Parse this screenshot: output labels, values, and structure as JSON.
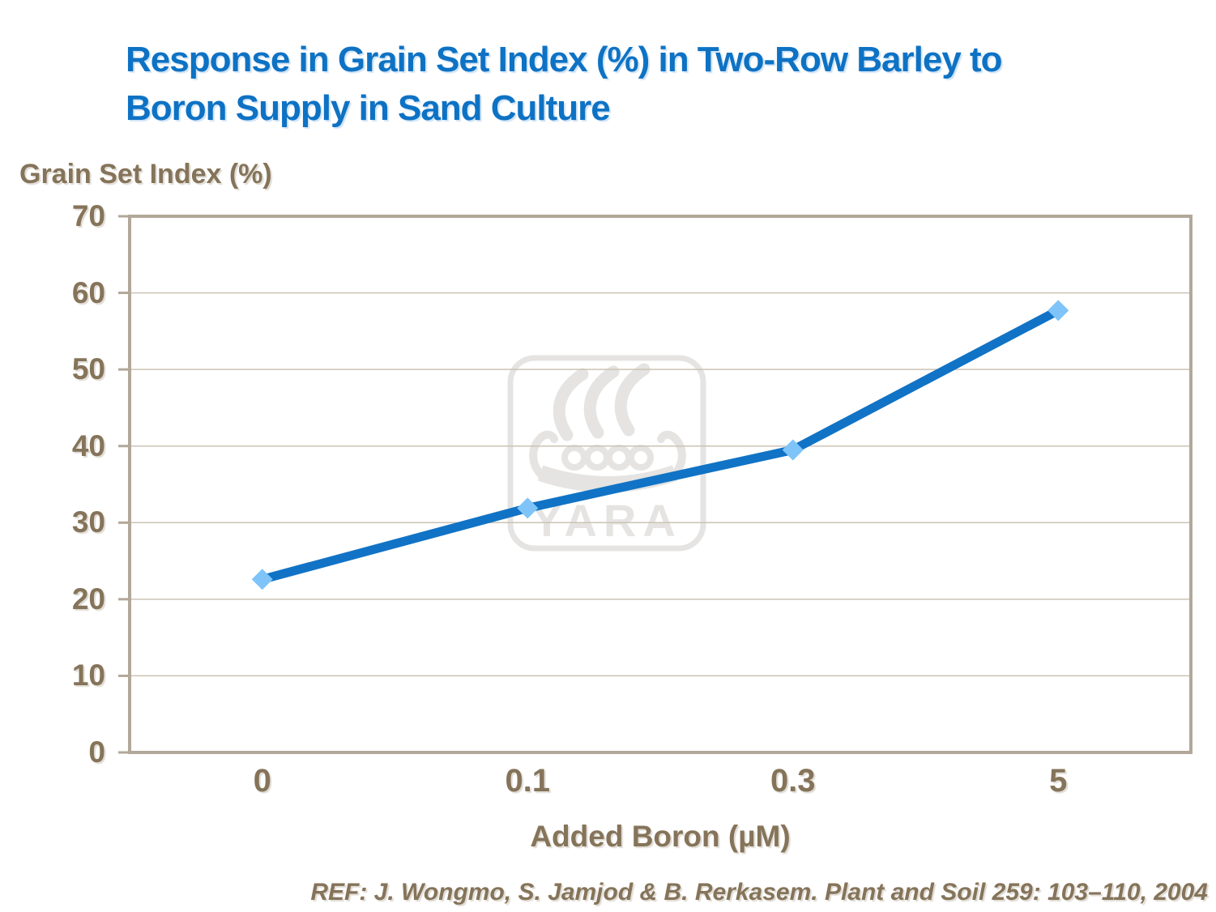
{
  "title_lines": [
    "Response in Grain Set Index (%) in Two-Row Barley to",
    "Boron Supply in Sand Culture"
  ],
  "y_axis_title": "Grain Set Index (%)",
  "x_axis_title": "Added Boron (µM)",
  "reference": "REF: J. Wongmo, S. Jamjod & B. Rerkasem. Plant and Soil 259: 103–110, 2004",
  "watermark": {
    "text": "YARA",
    "logo": "yara-viking-ship"
  },
  "colors": {
    "title_blue": "#0e72c4",
    "line_blue": "#1173c5",
    "marker_blue": "#7ec4f8",
    "label_brown": "#85745a",
    "plot_border": "#b2a899",
    "gridline": "#ccc3b4",
    "watermark_gray": "#e5e4e2"
  },
  "chart_data": {
    "type": "line",
    "title": "Response in Grain Set Index (%) in Two-Row Barley to Boron Supply in Sand Culture",
    "categories": [
      "0",
      "0.1",
      "0.3",
      "5"
    ],
    "values": [
      22.6,
      31.9,
      39.5,
      57.7
    ],
    "series_name": "Grain Set Index (%)",
    "xlabel": "Added Boron (µM)",
    "ylabel": "Grain Set Index (%)",
    "ylim": [
      0,
      70
    ],
    "yticks": [
      0,
      10,
      20,
      30,
      40,
      50,
      60,
      70
    ],
    "grid": true,
    "legend": "none",
    "marker": "diamond"
  }
}
